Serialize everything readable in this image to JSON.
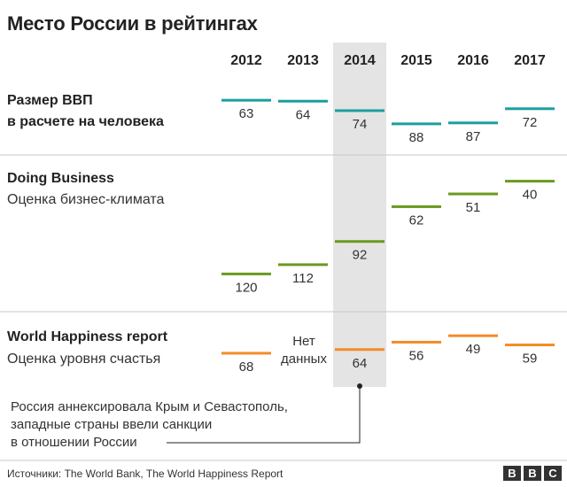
{
  "header": {
    "title": "Место России в рейтингах"
  },
  "chart_data": {
    "type": "table",
    "title": "Место России в рейтингах",
    "years": [
      "2012",
      "2013",
      "2014",
      "2015",
      "2016",
      "2017"
    ],
    "highlight_year": "2014",
    "series": [
      {
        "name": "Размер ВВП в расчете на человека",
        "color": "#1d9e9e",
        "values": [
          63,
          64,
          74,
          88,
          87,
          72
        ],
        "axis": [
          60,
          90
        ]
      },
      {
        "name": "Doing Business — Оценка бизнес-климата",
        "color": "#6a9a1f",
        "values": [
          120,
          112,
          92,
          62,
          51,
          40
        ],
        "axis": [
          38,
          122
        ]
      },
      {
        "name": "World Happiness report — Оценка уровня счастья",
        "color": "#f28c28",
        "values": [
          68,
          null,
          64,
          56,
          49,
          59
        ],
        "axis": [
          45,
          70
        ]
      }
    ]
  },
  "sections": [
    {
      "title_line1": "Размер ВВП",
      "title_line2": "в расчете на человека"
    },
    {
      "title": "Doing Business",
      "subtitle": "Оценка бизнес-климата"
    },
    {
      "title": "World Happiness report",
      "subtitle": "Оценка уровня счастья"
    }
  ],
  "no_data": {
    "line1": "Нет",
    "line2": "данных"
  },
  "annotation": {
    "line1": "Россия аннексировала Крым и Севастополь,",
    "line2": "западные страны ввели санкции",
    "line3": "в отношении России"
  },
  "footer": {
    "source": "Источники: The World Bank, The World Happiness Report",
    "logo": [
      "B",
      "B",
      "C"
    ]
  }
}
